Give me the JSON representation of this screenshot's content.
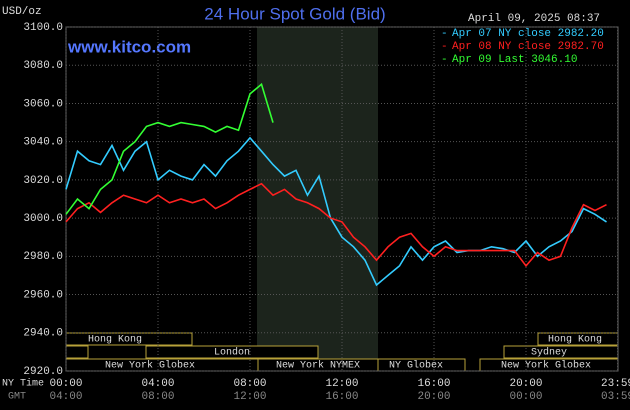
{
  "chart_data": {
    "type": "line",
    "title": "24 Hour Spot Gold (Bid)",
    "units": "USD/oz",
    "timestamp": "April 09, 2025 08:37",
    "site": "www.kitco.com",
    "x_label": "NY Time",
    "x2_label": "GMT",
    "x": [
      0,
      0.5,
      1,
      1.5,
      2,
      2.5,
      3,
      3.5,
      4,
      4.5,
      5,
      5.5,
      6,
      6.5,
      7,
      7.5,
      8,
      8.5,
      9,
      9.5,
      10,
      10.5,
      11,
      11.5,
      12,
      12.5,
      13,
      13.5,
      14,
      14.5,
      15,
      15.5,
      16,
      16.5,
      17,
      17.5,
      18,
      18.5,
      19,
      19.5,
      20,
      20.5,
      21,
      21.5,
      22,
      22.5,
      23,
      23.5
    ],
    "series": [
      {
        "name": "Apr 07 NY close 2982.20",
        "color": "#33ccff",
        "values": [
          3015,
          3035,
          3030,
          3028,
          3038,
          3025,
          3035,
          3040,
          3020,
          3025,
          3022,
          3020,
          3028,
          3022,
          3030,
          3035,
          3042,
          3035,
          3028,
          3022,
          3025,
          3012,
          3022,
          3000,
          2990,
          2985,
          2978,
          2965,
          2970,
          2975,
          2985,
          2978,
          2985,
          2988,
          2982,
          2983,
          2983,
          2985,
          2984,
          2982,
          2988,
          2980,
          2985,
          2988,
          2993,
          3005,
          3002,
          2998
        ]
      },
      {
        "name": "Apr 08 NY close 2982.70",
        "color": "#ff2020",
        "values": [
          2998,
          3005,
          3008,
          3003,
          3008,
          3012,
          3010,
          3008,
          3012,
          3008,
          3010,
          3008,
          3010,
          3005,
          3008,
          3012,
          3015,
          3018,
          3012,
          3015,
          3010,
          3008,
          3005,
          3000,
          2998,
          2990,
          2985,
          2978,
          2985,
          2990,
          2992,
          2985,
          2980,
          2985,
          2983,
          2983,
          2983,
          2983,
          2983,
          2983,
          2975,
          2982,
          2978,
          2980,
          2995,
          3007,
          3004,
          3007
        ]
      },
      {
        "name": "Apr 09 Last 3046.10",
        "color": "#33ff33",
        "values": [
          3002,
          3010,
          3005,
          3015,
          3020,
          3035,
          3040,
          3048,
          3050,
          3048,
          3050,
          3049,
          3048,
          3045,
          3048,
          3046,
          3065,
          3070,
          3050,
          null,
          null,
          null,
          null,
          null,
          null,
          null,
          null,
          null,
          null,
          null,
          null,
          null,
          null,
          null,
          null,
          null,
          null,
          null,
          null,
          null,
          null,
          null,
          null,
          null,
          null,
          null,
          null,
          null
        ]
      }
    ],
    "xlim": [
      0,
      24
    ],
    "ylim": [
      2920,
      3100
    ],
    "yticks": [
      {
        "value": 3100,
        "label": "3100.0"
      },
      {
        "value": 3080,
        "label": "3080.0"
      },
      {
        "value": 3060,
        "label": "3060.0"
      },
      {
        "value": 3040,
        "label": "3040.0"
      },
      {
        "value": 3020,
        "label": "3020.0"
      },
      {
        "value": 3000,
        "label": "3000.0"
      },
      {
        "value": 2980,
        "label": "2980.0"
      },
      {
        "value": 2960,
        "label": "2960.0"
      },
      {
        "value": 2940,
        "label": "2940.0"
      },
      {
        "value": 2920,
        "label": "2920.0"
      }
    ],
    "xticks": [
      {
        "value": 0,
        "label": "00:00"
      },
      {
        "value": 4,
        "label": "04:00"
      },
      {
        "value": 8,
        "label": "08:00"
      },
      {
        "value": 12,
        "label": "12:00"
      },
      {
        "value": 16,
        "label": "16:00"
      },
      {
        "value": 20,
        "label": "20:00"
      },
      {
        "value": 23.98,
        "label": "23:59"
      }
    ],
    "x2ticks": [
      {
        "value": 0,
        "label": "04:00"
      },
      {
        "value": 4,
        "label": "08:00"
      },
      {
        "value": 8,
        "label": "12:00"
      },
      {
        "value": 12,
        "label": "16:00"
      },
      {
        "value": 16,
        "label": "20:00"
      },
      {
        "value": 20,
        "label": "00:00"
      },
      {
        "value": 23.98,
        "label": "03:59"
      }
    ],
    "grid": true,
    "sessions": [
      "Hong Kong",
      "London",
      "New York Globex",
      "New York NYMEX",
      "NY Globex",
      "Hong Kong",
      "Sydney",
      "New York Globex"
    ]
  }
}
